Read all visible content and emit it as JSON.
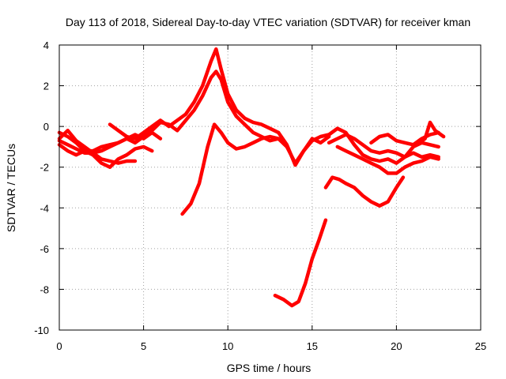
{
  "chart_data": {
    "type": "scatter",
    "title": "Day 113 of 2018, Sidereal Day-to-day VTEC variation (SDTVAR) for receiver kman",
    "xlabel": "GPS time / hours",
    "ylabel": "SDTVAR / TECUs",
    "xlim": [
      0,
      25
    ],
    "ylim": [
      -10,
      4
    ],
    "xticks": [
      0,
      5,
      10,
      15,
      20,
      25
    ],
    "xtick_labels": [
      "0",
      "5",
      "10",
      "15",
      "20",
      "25"
    ],
    "yticks": [
      4,
      2,
      0,
      -2,
      -4,
      -6,
      -8,
      -10
    ],
    "ytick_labels": [
      "4",
      "2",
      "0",
      "-2",
      "-4",
      "-6",
      "-8",
      "-10"
    ],
    "grid": true,
    "legend": "none",
    "marker": "+",
    "color": "#ff0000",
    "series": [
      {
        "name": "track-1",
        "x": [
          0,
          0.5,
          1.0,
          1.5,
          2.0,
          2.5,
          3.0,
          3.5,
          4.0,
          4.5,
          5.0,
          5.5,
          6.0
        ],
        "y": [
          -0.3,
          -0.5,
          -0.8,
          -1.2,
          -1.2,
          -1.0,
          -0.9,
          -0.8,
          -0.6,
          -0.4,
          -0.6,
          -0.3,
          -0.6
        ]
      },
      {
        "name": "track-2",
        "x": [
          0,
          0.5,
          1.0,
          1.5,
          2.0,
          2.5,
          3.0,
          3.5,
          4.0,
          4.5,
          5.0,
          5.5
        ],
        "y": [
          -0.9,
          -1.2,
          -1.4,
          -1.2,
          -1.4,
          -1.8,
          -2.0,
          -1.6,
          -1.4,
          -1.1,
          -1.0,
          -1.2
        ]
      },
      {
        "name": "track-3",
        "x": [
          0,
          0.5,
          1.0,
          1.5,
          2.0,
          2.5,
          3.0,
          3.5,
          4.0,
          4.5
        ],
        "y": [
          -0.6,
          -0.2,
          -0.7,
          -1.0,
          -1.3,
          -1.6,
          -1.7,
          -1.8,
          -1.7,
          -1.7
        ]
      },
      {
        "name": "track-4",
        "x": [
          0,
          0.5,
          1.0,
          1.5,
          2.0,
          2.5,
          3.0,
          3.5,
          4.0,
          4.5,
          5.0,
          5.5,
          6.0,
          6.5,
          7.0,
          7.5,
          8.0,
          8.5,
          9.0,
          9.3,
          9.6,
          10.0,
          10.5,
          11.0,
          11.5,
          12.0,
          12.5,
          13.0
        ],
        "y": [
          -0.7,
          -0.9,
          -1.1,
          -1.3,
          -1.3,
          -1.2,
          -1.0,
          -0.8,
          -0.6,
          -0.8,
          -0.5,
          -0.2,
          0.2,
          0.1,
          -0.2,
          0.3,
          0.8,
          1.5,
          2.4,
          2.7,
          2.3,
          1.2,
          0.5,
          0.1,
          -0.3,
          -0.5,
          -0.7,
          -0.6
        ]
      },
      {
        "name": "track-5",
        "x": [
          3.0,
          3.5,
          4.0,
          4.5,
          5.0,
          5.5,
          6.0,
          6.5,
          7.0,
          7.5,
          8.0,
          8.5,
          9.0,
          9.3,
          9.6,
          10.0,
          10.5,
          11.0,
          11.5,
          12.0,
          12.5,
          13.0
        ],
        "y": [
          0.1,
          -0.2,
          -0.5,
          -0.6,
          -0.3,
          0.0,
          0.3,
          0.0,
          0.3,
          0.6,
          1.2,
          2.0,
          3.2,
          3.8,
          2.8,
          1.6,
          0.8,
          0.4,
          0.2,
          0.1,
          -0.1,
          -0.3
        ]
      },
      {
        "name": "track-6",
        "x": [
          7.3,
          7.8,
          8.3,
          8.8,
          9.2,
          9.6,
          10.0,
          10.5,
          11.0,
          11.5,
          12.0,
          12.5,
          13.0,
          13.5,
          14.0,
          14.5,
          15.0,
          15.5,
          16.0
        ],
        "y": [
          -4.3,
          -3.8,
          -2.8,
          -1.0,
          0.1,
          -0.3,
          -0.8,
          -1.1,
          -1.0,
          -0.8,
          -0.6,
          -0.5,
          -0.6,
          -1.0,
          -1.8,
          -1.2,
          -0.6,
          -0.8,
          -0.5
        ]
      },
      {
        "name": "track-7",
        "x": [
          12.8,
          13.3,
          13.8,
          14.2,
          14.6,
          15.0,
          15.4,
          15.8
        ],
        "y": [
          -8.3,
          -8.5,
          -8.8,
          -8.6,
          -7.7,
          -6.5,
          -5.6,
          -4.6
        ]
      },
      {
        "name": "track-8",
        "x": [
          15.8,
          16.2,
          16.6,
          17.0,
          17.5,
          18.0,
          18.5,
          19.0,
          19.5,
          20.0,
          20.4
        ],
        "y": [
          -3.0,
          -2.5,
          -2.6,
          -2.8,
          -3.0,
          -3.4,
          -3.7,
          -3.9,
          -3.7,
          -3.0,
          -2.5
        ]
      },
      {
        "name": "track-9",
        "x": [
          13.0,
          13.5,
          14.0,
          14.5,
          15.0,
          15.5,
          16.0,
          16.5,
          17.0,
          17.5,
          18.0,
          18.5,
          19.0,
          19.5,
          20.0,
          20.5,
          21.0,
          21.5,
          22.0,
          22.5
        ],
        "y": [
          -0.3,
          -0.9,
          -1.9,
          -1.2,
          -0.7,
          -0.5,
          -0.4,
          -0.1,
          -0.3,
          -0.9,
          -1.4,
          -1.6,
          -1.7,
          -1.6,
          -1.8,
          -1.5,
          -1.3,
          -1.5,
          -1.4,
          -1.5
        ]
      },
      {
        "name": "track-10",
        "x": [
          16.0,
          16.5,
          17.0,
          17.5,
          18.0,
          18.5,
          19.0,
          19.5,
          20.0,
          20.5,
          21.0,
          21.5,
          22.0,
          22.5
        ],
        "y": [
          -0.8,
          -0.6,
          -0.4,
          -0.6,
          -0.9,
          -1.2,
          -1.3,
          -1.2,
          -1.3,
          -1.5,
          -1.0,
          -0.8,
          -0.9,
          -1.0
        ]
      },
      {
        "name": "track-11",
        "x": [
          16.5,
          17.0,
          17.5,
          18.0,
          18.5,
          19.0,
          19.5,
          20.0,
          20.5,
          21.0,
          21.5,
          22.0,
          22.5
        ],
        "y": [
          -1.0,
          -1.2,
          -1.4,
          -1.6,
          -1.8,
          -2.0,
          -2.3,
          -2.3,
          -2.0,
          -1.8,
          -1.7,
          -1.5,
          -1.6
        ]
      },
      {
        "name": "track-12",
        "x": [
          18.5,
          19.0,
          19.5,
          20.0,
          20.5,
          21.0,
          21.5,
          22.0,
          22.5
        ],
        "y": [
          -0.8,
          -0.5,
          -0.4,
          -0.7,
          -0.8,
          -0.9,
          -0.6,
          -0.4,
          -0.3
        ]
      },
      {
        "name": "track-13",
        "x": [
          21.2,
          21.7,
          22.0,
          22.3,
          22.8
        ],
        "y": [
          -0.9,
          -0.6,
          0.2,
          -0.2,
          -0.5
        ]
      }
    ]
  }
}
